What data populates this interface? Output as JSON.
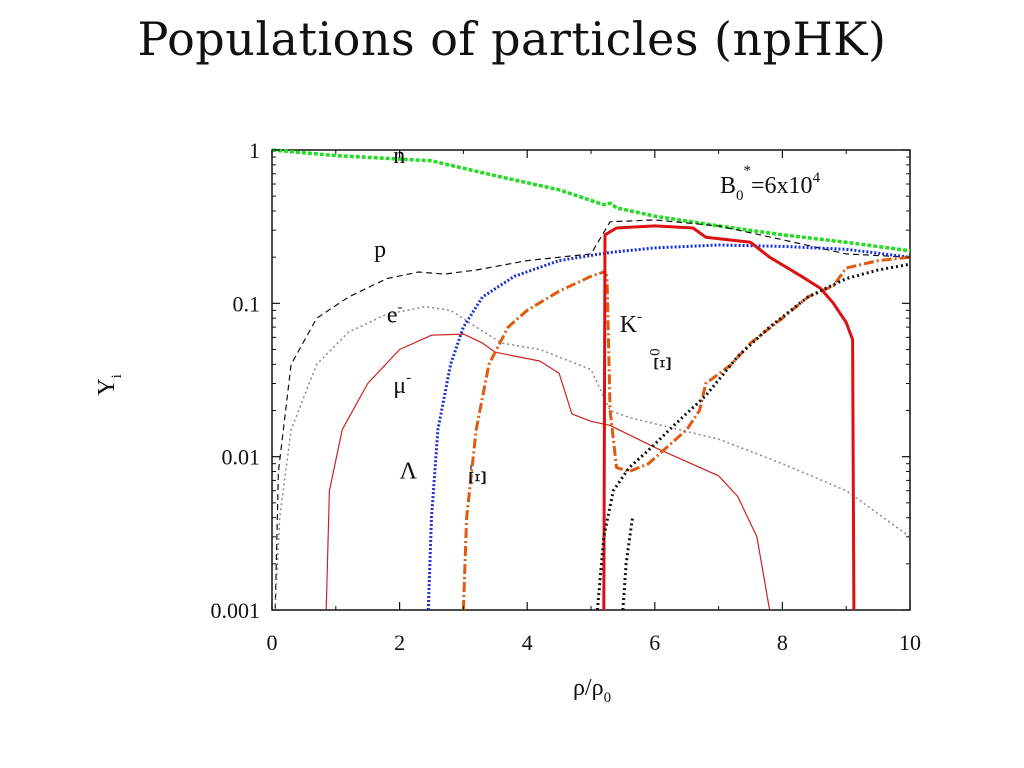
{
  "slide": {
    "title": "Populations of particles (npHK)"
  },
  "chart_data": {
    "type": "line",
    "xlabel": "ρ/ρ0",
    "ylabel": "Yi",
    "xlim": [
      0,
      10
    ],
    "ylim": [
      0.001,
      1
    ],
    "yscale": "log",
    "grid": false,
    "annotation": "B0*=6x10^4",
    "x_ticks": [
      "0",
      "2",
      "4",
      "6",
      "8",
      "10"
    ],
    "y_ticks": [
      "0.001",
      "0.01",
      "0.1",
      "1"
    ],
    "series": [
      {
        "name": "n",
        "color": "#22dd22",
        "dash": "4,2",
        "width": 3.5,
        "points": [
          [
            0,
            1.0
          ],
          [
            1.0,
            0.92
          ],
          [
            2.5,
            0.85
          ],
          [
            3.5,
            0.68
          ],
          [
            4.5,
            0.55
          ],
          [
            5.2,
            0.44
          ],
          [
            5.3,
            0.45
          ],
          [
            5.4,
            0.42
          ],
          [
            6,
            0.37
          ],
          [
            7,
            0.32
          ],
          [
            8,
            0.28
          ],
          [
            9,
            0.25
          ],
          [
            10,
            0.22
          ]
        ]
      },
      {
        "name": "p",
        "color": "#111111",
        "dash": "6,4",
        "width": 1.2,
        "points": [
          [
            0.05,
            0.001
          ],
          [
            0.1,
            0.008
          ],
          [
            0.3,
            0.04
          ],
          [
            0.7,
            0.08
          ],
          [
            1.2,
            0.11
          ],
          [
            1.8,
            0.145
          ],
          [
            2.3,
            0.16
          ],
          [
            2.7,
            0.155
          ],
          [
            3.2,
            0.165
          ],
          [
            4,
            0.19
          ],
          [
            5,
            0.21
          ],
          [
            5.3,
            0.34
          ],
          [
            6,
            0.35
          ],
          [
            7,
            0.32
          ],
          [
            8,
            0.26
          ],
          [
            9,
            0.21
          ],
          [
            10,
            0.2
          ]
        ]
      },
      {
        "name": "e-",
        "color": "#888888",
        "dash": "2,3",
        "width": 1.5,
        "points": [
          [
            0.05,
            0.001
          ],
          [
            0.12,
            0.004
          ],
          [
            0.3,
            0.015
          ],
          [
            0.7,
            0.04
          ],
          [
            1.2,
            0.065
          ],
          [
            1.8,
            0.085
          ],
          [
            2.4,
            0.095
          ],
          [
            2.8,
            0.09
          ],
          [
            3.2,
            0.07
          ],
          [
            3.6,
            0.055
          ],
          [
            4.2,
            0.05
          ],
          [
            5,
            0.037
          ],
          [
            5.3,
            0.02
          ],
          [
            5.6,
            0.018
          ],
          [
            7,
            0.013
          ],
          [
            8,
            0.009
          ],
          [
            9,
            0.006
          ],
          [
            10,
            0.003
          ]
        ]
      },
      {
        "name": "μ-",
        "color": "#cc2222",
        "dash": "",
        "width": 1.2,
        "points": [
          [
            0.85,
            0.001
          ],
          [
            0.9,
            0.006
          ],
          [
            1.1,
            0.015
          ],
          [
            1.5,
            0.03
          ],
          [
            2.0,
            0.05
          ],
          [
            2.5,
            0.062
          ],
          [
            3.0,
            0.063
          ],
          [
            3.3,
            0.055
          ],
          [
            3.5,
            0.048
          ],
          [
            4.2,
            0.042
          ],
          [
            4.5,
            0.035
          ],
          [
            4.7,
            0.019
          ],
          [
            5,
            0.017
          ],
          [
            5.3,
            0.016
          ],
          [
            6,
            0.0115
          ],
          [
            7,
            0.0075
          ],
          [
            7.3,
            0.0055
          ],
          [
            7.6,
            0.003
          ],
          [
            7.8,
            0.001
          ]
        ]
      },
      {
        "name": "Λ",
        "color": "#1a2fd0",
        "dash": "2,2",
        "width": 3,
        "points": [
          [
            2.45,
            0.001
          ],
          [
            2.5,
            0.004
          ],
          [
            2.6,
            0.015
          ],
          [
            2.8,
            0.04
          ],
          [
            3.0,
            0.07
          ],
          [
            3.3,
            0.11
          ],
          [
            3.8,
            0.15
          ],
          [
            4.5,
            0.19
          ],
          [
            5.3,
            0.215
          ],
          [
            6,
            0.23
          ],
          [
            7,
            0.24
          ],
          [
            8,
            0.235
          ],
          [
            9,
            0.225
          ],
          [
            10,
            0.2
          ]
        ]
      },
      {
        "name": "Ξ-",
        "color": "#e05a10",
        "dash": "10,3,2,3",
        "width": 3,
        "points": [
          [
            3.0,
            0.001
          ],
          [
            3.05,
            0.004
          ],
          [
            3.2,
            0.015
          ],
          [
            3.4,
            0.04
          ],
          [
            3.7,
            0.07
          ],
          [
            4.0,
            0.09
          ],
          [
            4.5,
            0.12
          ],
          [
            5.0,
            0.15
          ],
          [
            5.2,
            0.16
          ],
          [
            5.25,
            0.15
          ],
          [
            5.3,
            0.02
          ],
          [
            5.4,
            0.0085
          ],
          [
            5.6,
            0.008
          ],
          [
            5.9,
            0.009
          ],
          [
            6.5,
            0.015
          ],
          [
            6.7,
            0.02
          ],
          [
            6.8,
            0.03
          ],
          [
            7.2,
            0.04
          ],
          [
            7.5,
            0.055
          ],
          [
            8,
            0.08
          ],
          [
            8.4,
            0.11
          ],
          [
            8.8,
            0.13
          ],
          [
            9,
            0.17
          ],
          [
            9.5,
            0.19
          ],
          [
            10,
            0.2
          ]
        ]
      },
      {
        "name": "K-",
        "color": "#dd1111",
        "dash": "",
        "width": 3,
        "points": [
          [
            5.2,
            0.001
          ],
          [
            5.22,
            0.28
          ],
          [
            5.4,
            0.31
          ],
          [
            6,
            0.32
          ],
          [
            6.6,
            0.31
          ],
          [
            6.8,
            0.27
          ],
          [
            7.5,
            0.25
          ],
          [
            7.8,
            0.2
          ],
          [
            8.3,
            0.15
          ],
          [
            8.6,
            0.125
          ],
          [
            8.8,
            0.1
          ],
          [
            9.0,
            0.075
          ],
          [
            9.1,
            0.058
          ],
          [
            9.12,
            0.001
          ]
        ]
      },
      {
        "name": "Ξ0",
        "color": "#111111",
        "dash": "2,3",
        "width": 3,
        "points": [
          [
            5.1,
            0.001
          ],
          [
            5.2,
            0.003
          ],
          [
            5.35,
            0.006
          ],
          [
            5.6,
            0.0085
          ],
          [
            5.9,
            0.011
          ],
          [
            6.3,
            0.016
          ],
          [
            6.8,
            0.025
          ],
          [
            7.3,
            0.045
          ],
          [
            7.8,
            0.07
          ],
          [
            8.4,
            0.11
          ],
          [
            9,
            0.145
          ],
          [
            9.5,
            0.165
          ],
          [
            10,
            0.18
          ]
        ]
      },
      {
        "name": "",
        "color": "#111111",
        "dash": "2,3",
        "width": 3,
        "points": [
          [
            5.5,
            0.001
          ],
          [
            5.55,
            0.002
          ],
          [
            5.65,
            0.004
          ]
        ]
      }
    ],
    "labels": [
      {
        "text": "n",
        "x": 1.9,
        "y": 0.82
      },
      {
        "text": "p",
        "x": 1.6,
        "y": 0.2
      },
      {
        "text": "e",
        "sup": "-",
        "x": 1.8,
        "y": 0.075
      },
      {
        "text": "μ",
        "sup": "-",
        "x": 1.9,
        "y": 0.026
      },
      {
        "text": "Λ",
        "x": 2.0,
        "y": 0.0072
      },
      {
        "text": "K",
        "sup": "-",
        "x": 5.45,
        "y": 0.065
      },
      {
        "text": "Ξ",
        "sup": "-",
        "x": 3.35,
        "y": 0.0065,
        "rotate": -90
      },
      {
        "text": "Ξ",
        "sup": "0",
        "x": 6.25,
        "y": 0.036,
        "rotate": -90
      }
    ]
  }
}
